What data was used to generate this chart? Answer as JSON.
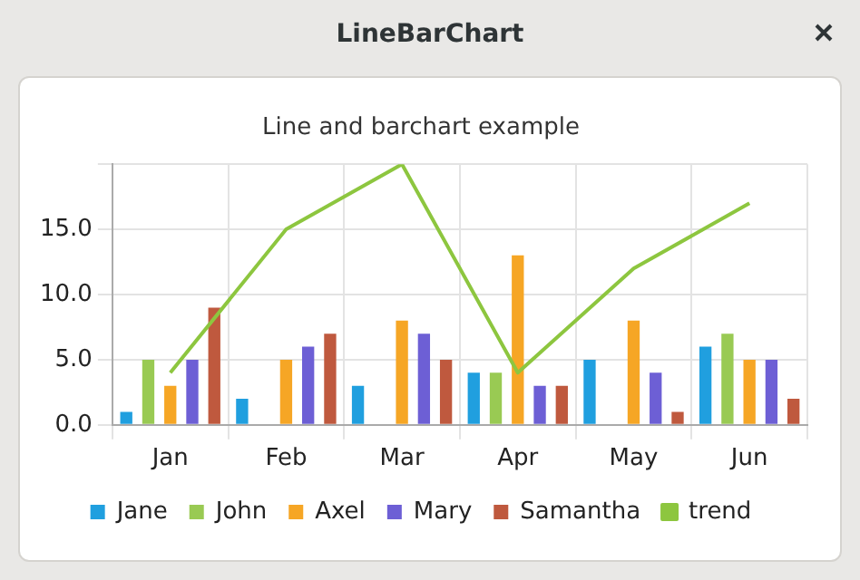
{
  "chart_data": {
    "type": "bar",
    "title": "Line and barchart example",
    "annotations": [
      "LineBarChart"
    ],
    "categories": [
      "Jan",
      "Feb",
      "Mar",
      "Apr",
      "May",
      "Jun"
    ],
    "series": [
      {
        "name": "Jane",
        "color": "#209fdf",
        "values": [
          1,
          2,
          3,
          4,
          5,
          6
        ]
      },
      {
        "name": "John",
        "color": "#99ca53",
        "values": [
          5,
          0,
          0,
          4,
          0,
          7
        ]
      },
      {
        "name": "Axel",
        "color": "#f6a625",
        "values": [
          3,
          5,
          8,
          13,
          8,
          5
        ]
      },
      {
        "name": "Mary",
        "color": "#6d5fd5",
        "values": [
          5,
          6,
          7,
          3,
          4,
          5
        ]
      },
      {
        "name": "Samantha",
        "color": "#bf593e",
        "values": [
          9,
          7,
          5,
          3,
          1,
          2
        ]
      },
      {
        "name": "trend",
        "type": "line",
        "color": "#8dc63f",
        "values": [
          4,
          15,
          20,
          4,
          12,
          17
        ]
      }
    ],
    "ylim": [
      0,
      20
    ],
    "yticks": [
      {
        "value": 0,
        "label": "0.0"
      },
      {
        "value": 5,
        "label": "5.0"
      },
      {
        "value": 10,
        "label": "10.0"
      },
      {
        "value": 15,
        "label": "15.0"
      },
      {
        "value": 20,
        "label": null
      }
    ],
    "grid": true,
    "legend": "bottom",
    "marker": "none"
  }
}
